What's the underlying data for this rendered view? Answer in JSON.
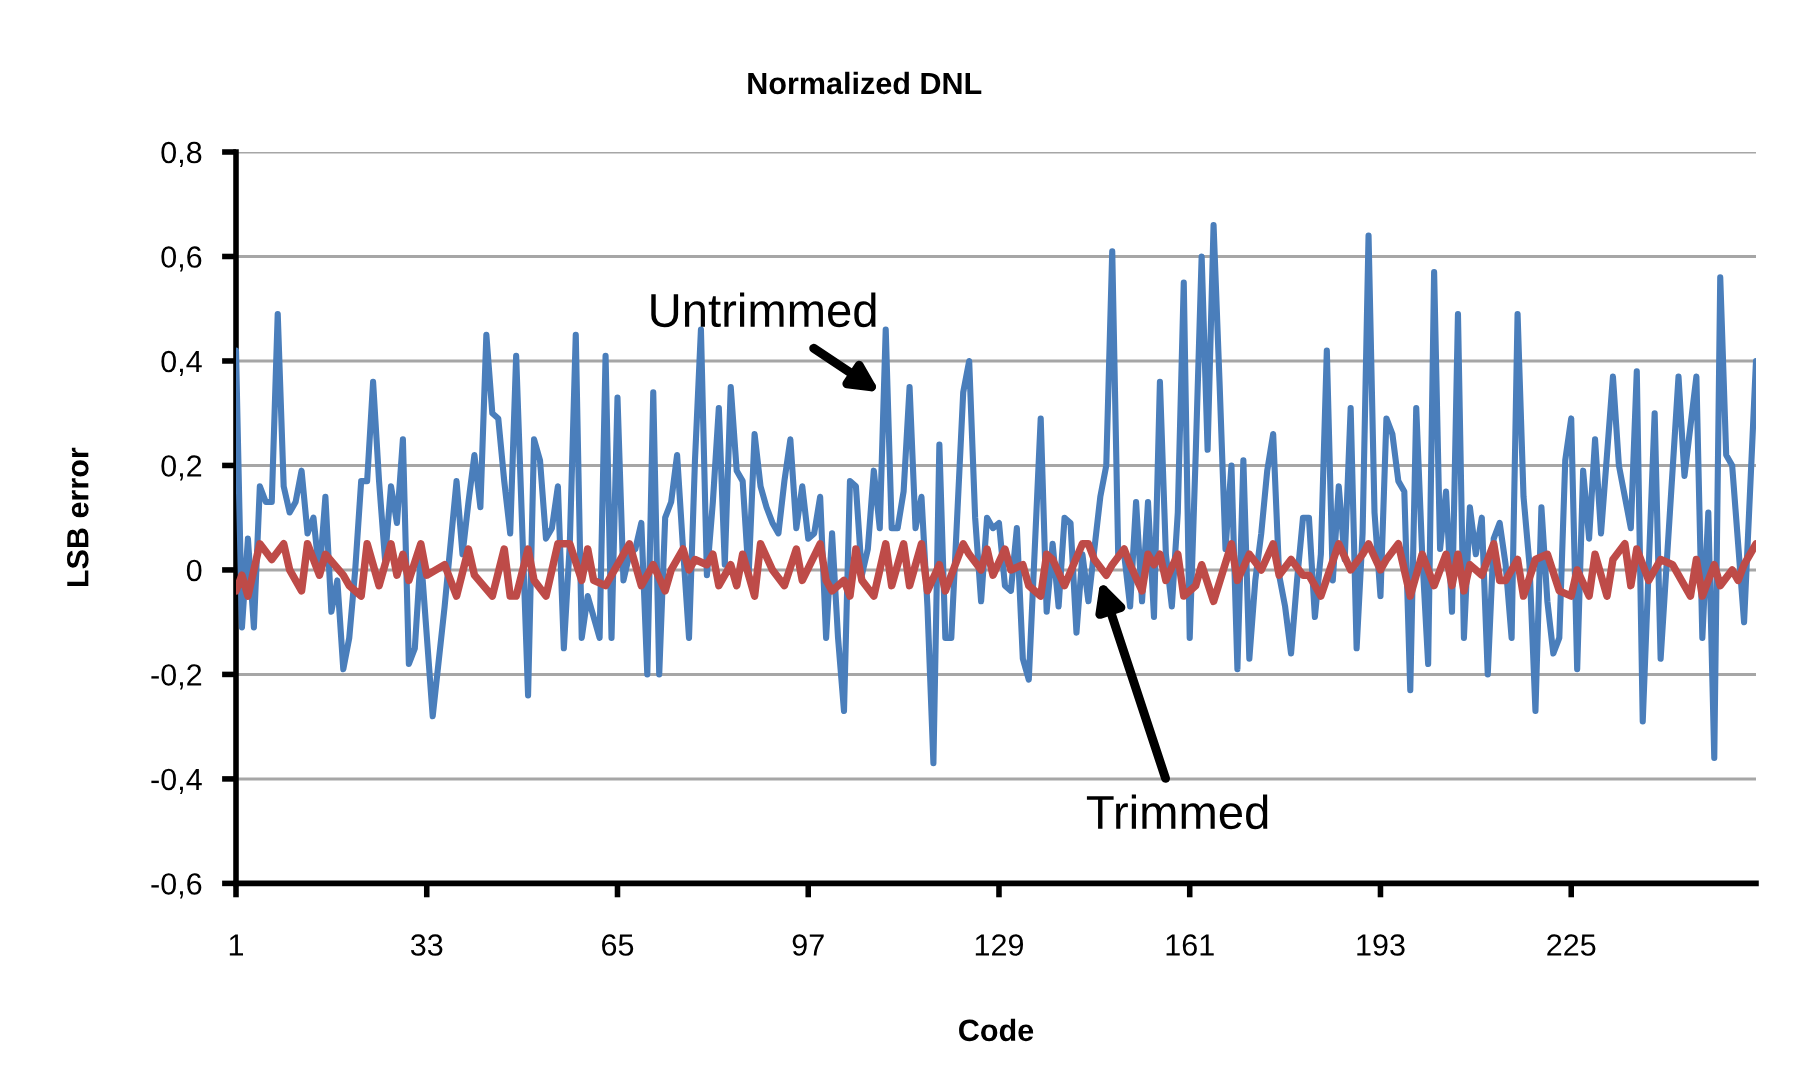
{
  "chart_data": {
    "type": "line",
    "title": "Normalized DNL",
    "xlabel": "Code",
    "ylabel": "LSB error",
    "xlim": [
      1,
      256
    ],
    "xticks": [
      1,
      33,
      65,
      97,
      129,
      161,
      193,
      225
    ],
    "ylim": [
      -0.6,
      0.8
    ],
    "yticks": [
      {
        "value": -0.6,
        "label": "-0,6"
      },
      {
        "value": -0.4,
        "label": "-0,4"
      },
      {
        "value": -0.2,
        "label": "-0,2"
      },
      0,
      {
        "value": 0.2,
        "label": "0,2"
      },
      {
        "value": 0.4,
        "label": "0,4"
      },
      {
        "value": 0.6,
        "label": "0,6"
      },
      {
        "value": 0.8,
        "label": "0,8"
      }
    ],
    "grid": "y",
    "annotations": [
      {
        "text": "Untrimmed",
        "x": 109,
        "y": 0.34
      },
      {
        "text": "Trimmed",
        "x": 146,
        "y": -0.02
      }
    ],
    "series": [
      {
        "color": "#4a7ebb",
        "x": [
          1,
          2,
          3,
          4,
          5,
          6,
          7,
          8,
          9,
          10,
          11,
          12,
          13,
          14,
          15,
          16,
          17,
          18,
          19,
          20,
          21,
          22,
          23,
          24,
          25,
          26,
          27,
          28,
          29,
          30,
          31,
          32,
          34,
          36,
          38,
          39,
          40,
          41,
          42,
          43,
          44,
          45,
          46,
          47,
          48,
          50,
          51,
          52,
          53,
          54,
          55,
          56,
          57,
          58,
          59,
          60,
          62,
          63,
          64,
          65,
          66,
          67,
          68,
          69,
          70,
          71,
          72,
          73,
          74,
          75,
          76,
          77,
          78,
          79,
          80,
          81,
          82,
          83,
          84,
          85,
          86,
          87,
          88,
          89,
          90,
          91,
          92,
          93,
          94,
          95,
          96,
          97,
          98,
          99,
          100,
          101,
          102,
          103,
          104,
          105,
          106,
          107,
          108,
          109,
          110,
          111,
          112,
          113,
          114,
          115,
          116,
          117,
          118,
          119,
          120,
          121,
          123,
          124,
          125,
          126,
          127,
          128,
          129,
          130,
          131,
          132,
          133,
          134,
          136,
          137,
          138,
          139,
          140,
          141,
          142,
          143,
          144,
          146,
          147,
          148,
          149,
          150,
          151,
          152,
          153,
          154,
          155,
          156,
          157,
          158,
          159,
          160,
          161,
          162,
          163,
          164,
          165,
          166,
          167,
          168,
          169,
          170,
          171,
          172,
          173,
          174,
          175,
          176,
          177,
          178,
          179,
          180,
          181,
          182,
          183,
          184,
          185,
          186,
          187,
          188,
          189,
          190,
          191,
          192,
          193,
          194,
          195,
          196,
          197,
          198,
          199,
          200,
          201,
          202,
          203,
          204,
          205,
          206,
          207,
          208,
          209,
          210,
          211,
          212,
          213,
          214,
          215,
          216,
          217,
          218,
          219,
          220,
          221,
          222,
          223,
          224,
          225,
          226,
          227,
          228,
          229,
          230,
          232,
          233,
          235,
          236,
          237,
          239,
          240,
          243,
          244,
          246,
          247,
          248,
          249,
          250,
          251,
          252,
          253,
          254,
          256
        ],
        "values": [
          0.42,
          -0.11,
          0.06,
          -0.11,
          0.16,
          0.13,
          0.13,
          0.49,
          0.16,
          0.11,
          0.13,
          0.19,
          0.07,
          0.1,
          -0.01,
          0.14,
          -0.08,
          -0.02,
          -0.19,
          -0.13,
          0.0,
          0.17,
          0.17,
          0.36,
          0.17,
          0.02,
          0.16,
          0.09,
          0.25,
          -0.18,
          -0.15,
          0.03,
          -0.28,
          -0.07,
          0.17,
          0.03,
          0.13,
          0.22,
          0.12,
          0.45,
          0.3,
          0.29,
          0.17,
          0.07,
          0.41,
          -0.24,
          0.25,
          0.21,
          0.06,
          0.08,
          0.16,
          -0.15,
          0.05,
          0.45,
          -0.13,
          -0.05,
          -0.13,
          0.41,
          -0.13,
          0.33,
          -0.02,
          0.03,
          0.04,
          0.09,
          -0.2,
          0.34,
          -0.2,
          0.1,
          0.13,
          0.22,
          0.04,
          -0.13,
          0.21,
          0.46,
          -0.01,
          0.13,
          0.31,
          0.01,
          0.35,
          0.19,
          0.17,
          -0.01,
          0.26,
          0.16,
          0.12,
          0.09,
          0.07,
          0.17,
          0.25,
          0.08,
          0.16,
          0.06,
          0.07,
          0.14,
          -0.13,
          0.07,
          -0.13,
          -0.27,
          0.17,
          0.16,
          -0.01,
          0.04,
          0.19,
          0.08,
          0.46,
          0.08,
          0.08,
          0.15,
          0.35,
          0.08,
          0.14,
          -0.07,
          -0.37,
          0.24,
          -0.13,
          -0.13,
          0.34,
          0.4,
          0.1,
          -0.06,
          0.1,
          0.08,
          0.09,
          -0.03,
          -0.04,
          0.08,
          -0.17,
          -0.21,
          0.29,
          -0.08,
          0.05,
          -0.07,
          0.1,
          0.09,
          -0.12,
          0.03,
          -0.06,
          0.14,
          0.2,
          0.61,
          0.03,
          0.03,
          -0.07,
          0.13,
          -0.06,
          0.13,
          -0.09,
          0.36,
          0.03,
          -0.07,
          0.11,
          0.55,
          -0.13,
          0.22,
          0.6,
          0.23,
          0.66,
          0.36,
          0.04,
          0.2,
          -0.19,
          0.21,
          -0.17,
          -0.02,
          0.07,
          0.19,
          0.26,
          -0.01,
          -0.07,
          -0.16,
          -0.02,
          0.1,
          0.1,
          -0.09,
          0.03,
          0.42,
          -0.02,
          0.16,
          0.02,
          0.31,
          -0.15,
          0.07,
          0.64,
          0.11,
          -0.05,
          0.29,
          0.26,
          0.17,
          0.15,
          -0.23,
          0.31,
          0.03,
          -0.18,
          0.57,
          0.04,
          0.15,
          -0.08,
          0.49,
          -0.13,
          0.12,
          0.03,
          0.1,
          -0.2,
          0.06,
          0.09,
          0.01,
          -0.13,
          0.49,
          0.14,
          0.01,
          -0.27,
          0.12,
          -0.06,
          -0.16,
          -0.13,
          0.21,
          0.29,
          -0.19,
          0.19,
          0.06,
          0.25,
          0.07,
          0.37,
          0.2,
          0.08,
          0.38,
          -0.29,
          0.3,
          -0.17,
          0.37,
          0.18,
          0.37,
          -0.13,
          0.11,
          -0.36,
          0.56,
          0.22,
          0.2,
          0.05,
          -0.1,
          0.4
        ]
      },
      {
        "color": "#be4b48",
        "x": [
          1,
          2,
          3,
          5,
          7,
          9,
          10,
          12,
          13,
          15,
          16,
          19,
          20,
          22,
          23,
          25,
          27,
          28,
          29,
          30,
          32,
          33,
          36,
          38,
          40,
          41,
          44,
          46,
          47,
          48,
          50,
          51,
          53,
          55,
          57,
          59,
          60,
          61,
          63,
          65,
          67,
          69,
          71,
          73,
          74,
          76,
          77,
          78,
          80,
          81,
          82,
          84,
          85,
          86,
          88,
          89,
          91,
          93,
          95,
          96,
          99,
          100,
          101,
          103,
          104,
          105,
          106,
          108,
          110,
          111,
          113,
          114,
          116,
          117,
          119,
          120,
          122,
          123,
          124,
          126,
          127,
          128,
          130,
          131,
          133,
          134,
          136,
          137,
          138,
          140,
          143,
          144,
          145,
          147,
          148,
          150,
          151,
          153,
          154,
          155,
          156,
          157,
          159,
          160,
          162,
          163,
          165,
          168,
          169,
          171,
          173,
          175,
          176,
          178,
          180,
          181,
          183,
          186,
          188,
          190,
          191,
          193,
          194,
          196,
          198,
          200,
          202,
          204,
          205,
          206,
          207,
          208,
          210,
          212,
          213,
          214,
          216,
          217,
          219,
          221,
          223,
          225,
          226,
          228,
          229,
          231,
          232,
          234,
          235,
          236,
          238,
          240,
          242,
          245,
          246,
          247,
          249,
          250,
          252,
          253,
          254,
          256
        ],
        "values": [
          -0.04,
          -0.01,
          -0.05,
          0.05,
          0.02,
          0.05,
          0.0,
          -0.04,
          0.05,
          -0.01,
          0.03,
          -0.01,
          -0.03,
          -0.05,
          0.05,
          -0.03,
          0.05,
          -0.01,
          0.03,
          -0.02,
          0.05,
          -0.01,
          0.01,
          -0.05,
          0.04,
          -0.01,
          -0.05,
          0.04,
          -0.05,
          -0.05,
          0.04,
          -0.02,
          -0.05,
          0.05,
          0.05,
          -0.02,
          0.04,
          -0.02,
          -0.03,
          0.01,
          0.05,
          -0.03,
          0.01,
          -0.04,
          0.0,
          0.04,
          0.0,
          0.02,
          0.01,
          0.03,
          -0.03,
          0.01,
          -0.03,
          0.03,
          -0.05,
          0.05,
          0.0,
          -0.03,
          0.04,
          -0.02,
          0.05,
          -0.02,
          -0.04,
          -0.02,
          -0.05,
          0.04,
          -0.02,
          -0.05,
          0.05,
          -0.03,
          0.05,
          -0.03,
          0.05,
          -0.04,
          0.01,
          -0.04,
          0.02,
          0.05,
          0.03,
          0.0,
          0.04,
          -0.01,
          0.04,
          0.0,
          0.01,
          -0.03,
          -0.05,
          0.03,
          0.02,
          -0.03,
          0.05,
          0.05,
          0.02,
          -0.01,
          0.01,
          0.04,
          0.01,
          -0.04,
          0.03,
          0.01,
          0.03,
          -0.02,
          0.03,
          -0.05,
          -0.03,
          0.01,
          -0.06,
          0.05,
          -0.02,
          0.03,
          0.0,
          0.05,
          -0.01,
          0.02,
          -0.01,
          -0.01,
          -0.05,
          0.05,
          0.0,
          0.03,
          0.05,
          0.0,
          0.02,
          0.05,
          -0.05,
          0.03,
          -0.03,
          0.03,
          -0.03,
          0.03,
          -0.04,
          0.01,
          -0.01,
          0.05,
          -0.02,
          -0.02,
          0.02,
          -0.05,
          0.02,
          0.03,
          -0.04,
          -0.05,
          0.0,
          -0.05,
          0.03,
          -0.05,
          0.02,
          0.05,
          -0.03,
          0.04,
          -0.02,
          0.02,
          0.01,
          -0.05,
          0.02,
          -0.05,
          0.01,
          -0.03,
          0.0,
          -0.02,
          0.01,
          0.05
        ]
      }
    ]
  }
}
